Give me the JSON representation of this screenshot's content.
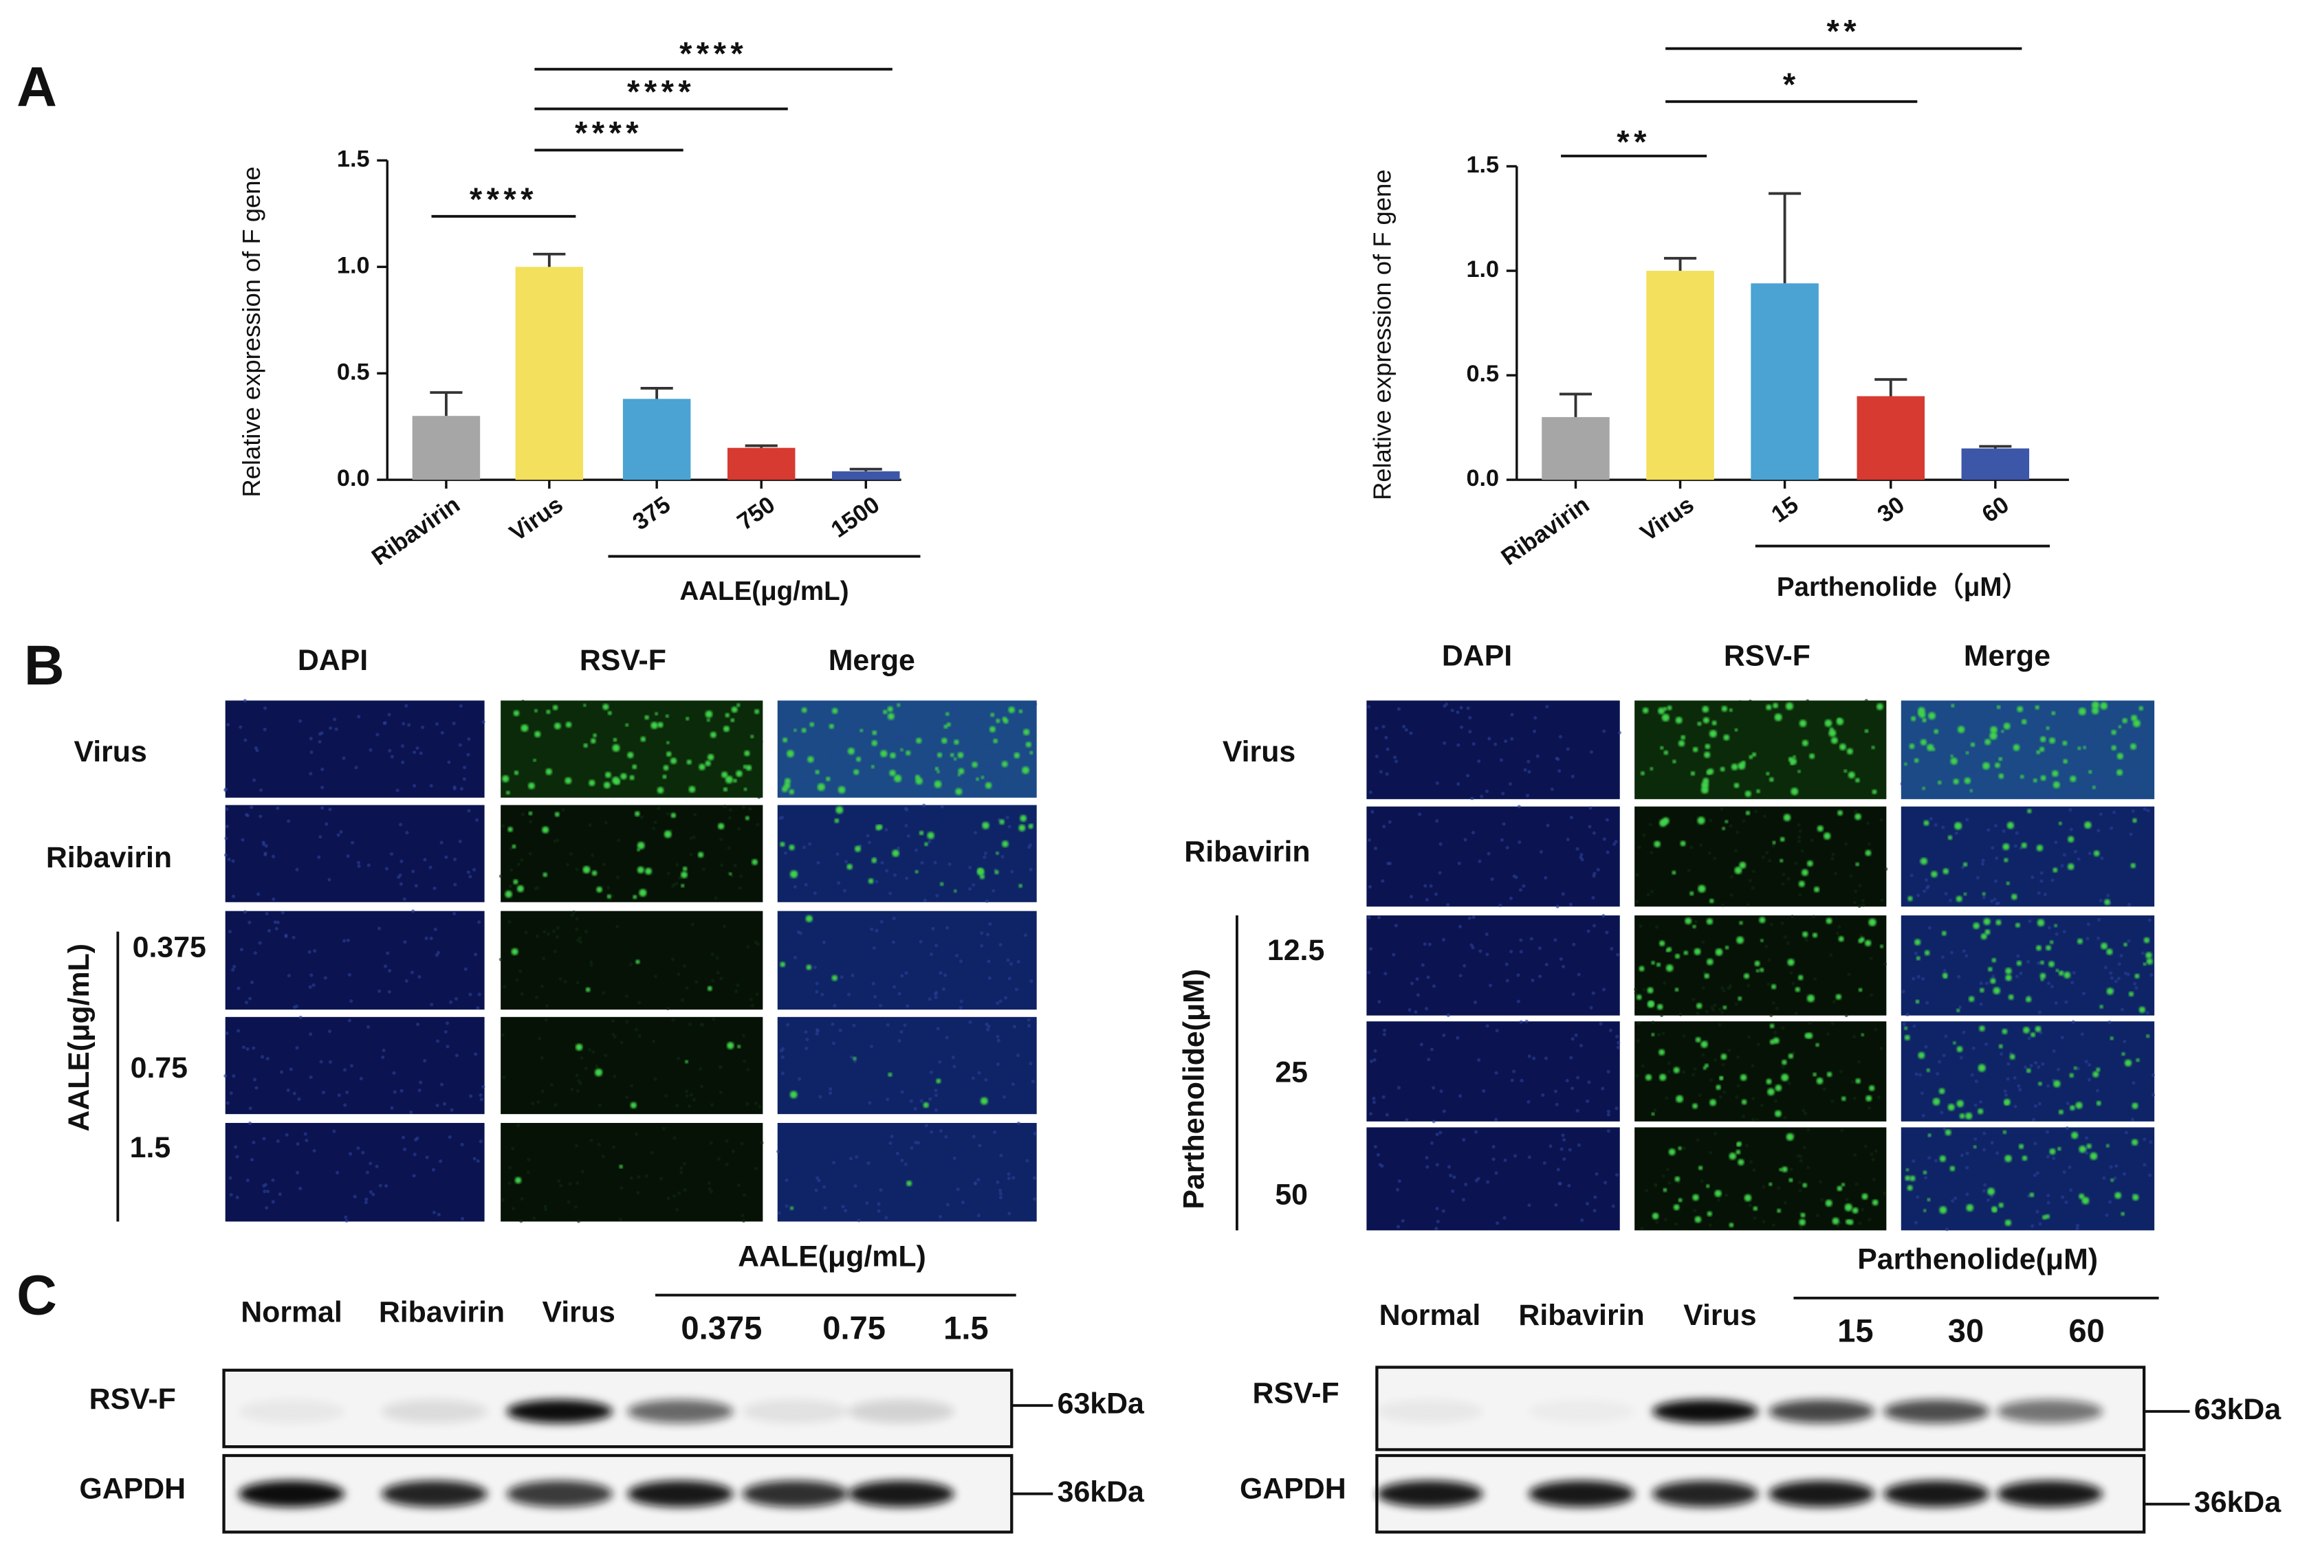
{
  "panel_labels": [
    "A",
    "B",
    "C"
  ],
  "chart_data": [
    {
      "type": "bar",
      "ylabel": "Relative expression of F gene",
      "categories": [
        "Ribavirin",
        "Virus",
        "375",
        "750",
        "1500"
      ],
      "values": [
        0.3,
        1.0,
        0.38,
        0.15,
        0.04
      ],
      "errors": [
        0.11,
        0.06,
        0.05,
        0.01,
        0.01
      ],
      "colors": [
        "#a6a6a6",
        "#f3e05c",
        "#4aa3d3",
        "#d63a31",
        "#3c56a8"
      ],
      "group_label": "AALE(μg/mL)",
      "ylim": [
        0,
        1.5
      ],
      "yticks": [
        {
          "value": 0,
          "label": "0.0"
        },
        {
          "value": 0.5,
          "label": "0.5"
        },
        {
          "value": 1,
          "label": "1.0"
        },
        {
          "value": 1.5,
          "label": "1.5"
        }
      ],
      "significance": [
        {
          "between": [
            "Ribavirin",
            "Virus"
          ],
          "label": "****"
        },
        {
          "between": [
            "Virus",
            "375"
          ],
          "label": "****"
        },
        {
          "between": [
            "Virus",
            "750"
          ],
          "label": "****"
        },
        {
          "between": [
            "Virus",
            "1500"
          ],
          "label": "****"
        }
      ]
    },
    {
      "type": "bar",
      "ylabel": "Relative expression of F gene",
      "categories": [
        "Ribavirin",
        "Virus",
        "15",
        "30",
        "60"
      ],
      "values": [
        0.3,
        1.0,
        0.94,
        0.4,
        0.15
      ],
      "errors": [
        0.11,
        0.06,
        0.43,
        0.08,
        0.01
      ],
      "colors": [
        "#a6a6a6",
        "#f3e05c",
        "#4aa3d3",
        "#d63a31",
        "#3c56a8"
      ],
      "group_label": "Parthenolide（μM）",
      "ylim": [
        0,
        1.5
      ],
      "yticks": [
        {
          "value": 0,
          "label": "0.0"
        },
        {
          "value": 0.5,
          "label": "0.5"
        },
        {
          "value": 1,
          "label": "1.0"
        },
        {
          "value": 1.5,
          "label": "1.5"
        }
      ],
      "significance": [
        {
          "between": [
            "Ribavirin",
            "Virus"
          ],
          "label": "**"
        },
        {
          "between": [
            "Virus",
            "30"
          ],
          "label": "*"
        },
        {
          "between": [
            "Virus",
            "60"
          ],
          "label": "**"
        }
      ]
    }
  ],
  "if_panels": [
    {
      "columns": [
        "DAPI",
        "RSV-F",
        "Merge"
      ],
      "rows": [
        "Virus",
        "Ribavirin"
      ],
      "group": "AALE(μg/mL)",
      "doses": [
        "0.375",
        "0.75",
        "1.5"
      ]
    },
    {
      "columns": [
        "DAPI",
        "RSV-F",
        "Merge"
      ],
      "rows": [
        "Virus",
        "Ribavirin"
      ],
      "group": "Parthenolide(μM)",
      "doses": [
        "12.5",
        "25",
        "50"
      ]
    }
  ],
  "blots": [
    {
      "lanes": [
        "Normal",
        "Ribavirin",
        "Virus"
      ],
      "group": "AALE(μg/mL)",
      "doses": [
        "0.375",
        "0.75",
        "1.5"
      ],
      "rows": [
        "RSV-F",
        "GAPDH"
      ],
      "markers": [
        "63kDa",
        "36kDa"
      ]
    },
    {
      "lanes": [
        "Normal",
        "Ribavirin",
        "Virus"
      ],
      "group": "Parthenolide(μM)",
      "doses": [
        "15",
        "30",
        "60"
      ],
      "rows": [
        "RSV-F",
        "GAPDH"
      ],
      "markers": [
        "63kDa",
        "36kDa"
      ]
    }
  ]
}
